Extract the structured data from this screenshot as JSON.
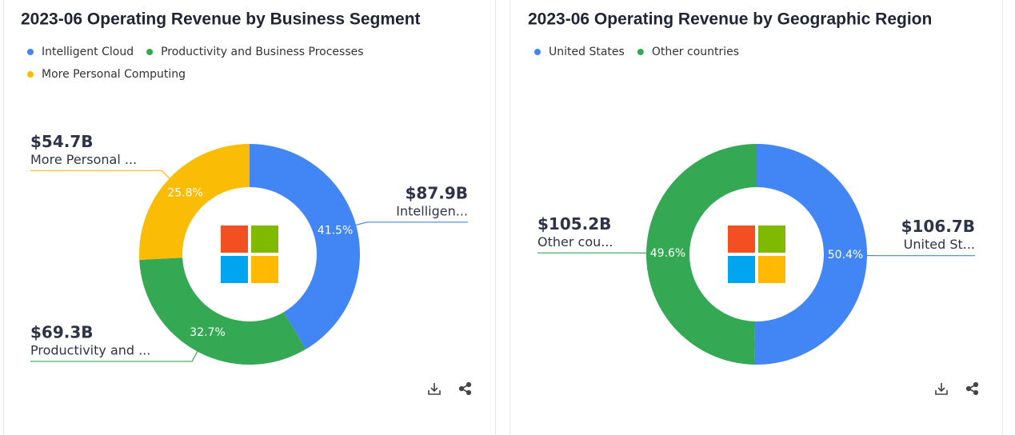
{
  "chart_data": [
    {
      "type": "donut",
      "title": "2023-06 Operating Revenue by Business Segment",
      "categories": [
        "Intelligent Cloud",
        "Productivity and Business Processes",
        "More Personal Computing"
      ],
      "callout_labels": [
        "Intelligen...",
        "Productivity and ...",
        "More Personal ..."
      ],
      "values": [
        87.9,
        69.3,
        54.7
      ],
      "value_labels": [
        "$87.9B",
        "$69.3B",
        "$54.7B"
      ],
      "percent_labels": [
        "41.5%",
        "32.7%",
        "25.8%"
      ],
      "colors": [
        "#4285f4",
        "#34a853",
        "#fbbc05"
      ]
    },
    {
      "type": "donut",
      "title": "2023-06 Operating Revenue by Geographic Region",
      "categories": [
        "United States",
        "Other countries"
      ],
      "callout_labels": [
        "United St...",
        "Other cou..."
      ],
      "values": [
        106.7,
        105.2
      ],
      "value_labels": [
        "$106.7B",
        "$105.2B"
      ],
      "percent_labels": [
        "50.4%",
        "49.6%"
      ],
      "colors": [
        "#4285f4",
        "#34a853"
      ]
    }
  ]
}
